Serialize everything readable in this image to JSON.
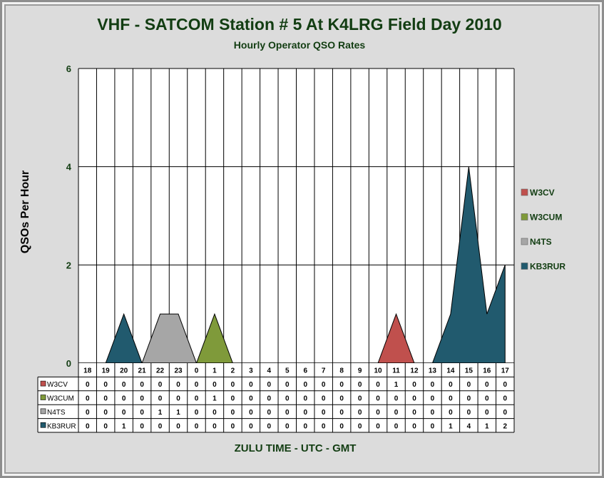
{
  "chart_data": {
    "type": "area",
    "title": "VHF  -  SATCOM Station # 5 At K4LRG Field Day 2010",
    "subtitle": "Hourly Operator QSO Rates",
    "xlabel": "ZULU TIME  -  UTC  -  GMT",
    "ylabel": "QSOs Per Hour",
    "ylim": [
      0,
      6
    ],
    "yticks": [
      "0",
      "2",
      "4",
      "6"
    ],
    "grid": true,
    "legend_position": "right",
    "categories": [
      "18",
      "19",
      "20",
      "21",
      "22",
      "23",
      "0",
      "1",
      "2",
      "3",
      "4",
      "5",
      "6",
      "7",
      "8",
      "9",
      "10",
      "11",
      "12",
      "13",
      "14",
      "15",
      "16",
      "17"
    ],
    "series": [
      {
        "name": "W3CV",
        "color": "#c0504d",
        "values": [
          0,
          0,
          0,
          0,
          0,
          0,
          0,
          0,
          0,
          0,
          0,
          0,
          0,
          0,
          0,
          0,
          0,
          1,
          0,
          0,
          0,
          0,
          0,
          0
        ]
      },
      {
        "name": "W3CUM",
        "color": "#7f9a3a",
        "values": [
          0,
          0,
          0,
          0,
          0,
          0,
          0,
          1,
          0,
          0,
          0,
          0,
          0,
          0,
          0,
          0,
          0,
          0,
          0,
          0,
          0,
          0,
          0,
          0
        ]
      },
      {
        "name": "N4TS",
        "color": "#a6a6a6",
        "values": [
          0,
          0,
          0,
          0,
          1,
          1,
          0,
          0,
          0,
          0,
          0,
          0,
          0,
          0,
          0,
          0,
          0,
          0,
          0,
          0,
          0,
          0,
          0,
          0
        ]
      },
      {
        "name": "KB3RUR",
        "color": "#215a6e",
        "values": [
          0,
          0,
          1,
          0,
          0,
          0,
          0,
          0,
          0,
          0,
          0,
          0,
          0,
          0,
          0,
          0,
          0,
          0,
          0,
          0,
          1,
          4,
          1,
          2
        ]
      }
    ]
  }
}
